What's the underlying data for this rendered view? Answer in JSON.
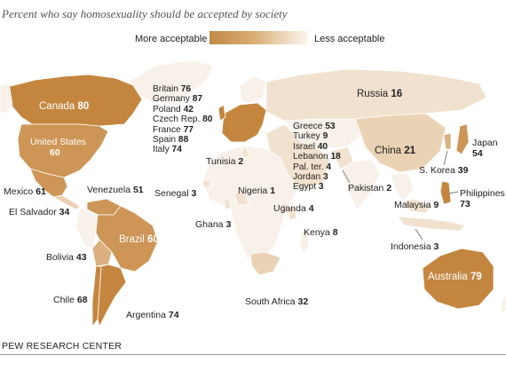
{
  "title": "Percent who say homosexuality should be accepted by society",
  "legend": {
    "more": "More acceptable",
    "less": "Less acceptable",
    "gradient_colors": [
      "#c08a48",
      "#efdcc2",
      "#fbf4ec"
    ]
  },
  "colors": {
    "land": "#f7f1ea",
    "border": "#ffffff",
    "highest": "#c4863f",
    "high": "#cd9556",
    "mid": "#dbb07e",
    "low": "#ead2b4",
    "lowest": "#f1e2cf"
  },
  "countries": {
    "canada": {
      "name": "Canada",
      "value": "80"
    },
    "us": {
      "name": "United States",
      "value": "60"
    },
    "mexico": {
      "name": "Mexico",
      "value": "61"
    },
    "el_salvador": {
      "name": "El Salvador",
      "value": "34"
    },
    "venezuela": {
      "name": "Venezuela",
      "value": "51"
    },
    "brazil": {
      "name": "Brazil",
      "value": "60"
    },
    "bolivia": {
      "name": "Bolivia",
      "value": "43"
    },
    "chile": {
      "name": "Chile",
      "value": "68"
    },
    "argentina": {
      "name": "Argentina",
      "value": "74"
    },
    "senegal": {
      "name": "Senegal",
      "value": "3"
    },
    "ghana": {
      "name": "Ghana",
      "value": "3"
    },
    "nigeria": {
      "name": "Nigeria",
      "value": "1"
    },
    "tunisia": {
      "name": "Tunisia",
      "value": "2"
    },
    "uganda": {
      "name": "Uganda",
      "value": "4"
    },
    "kenya": {
      "name": "Kenya",
      "value": "8"
    },
    "south_africa": {
      "name": "South Africa",
      "value": "32"
    },
    "russia": {
      "name": "Russia",
      "value": "16"
    },
    "china": {
      "name": "China",
      "value": "21"
    },
    "japan": {
      "name": "Japan",
      "value": "54"
    },
    "s_korea": {
      "name": "S. Korea",
      "value": "39"
    },
    "philippines": {
      "name": "Philippines",
      "value": "73"
    },
    "malaysia": {
      "name": "Malaysia",
      "value": "9"
    },
    "indonesia": {
      "name": "Indonesia",
      "value": "3"
    },
    "pakistan": {
      "name": "Pakistan",
      "value": "2"
    },
    "australia": {
      "name": "Australia",
      "value": "79"
    }
  },
  "europe_list": [
    {
      "name": "Britain",
      "value": "76"
    },
    {
      "name": "Germany",
      "value": "87"
    },
    {
      "name": "Poland",
      "value": "42"
    },
    {
      "name": "Czech Rep.",
      "value": "80"
    },
    {
      "name": "France",
      "value": "77"
    },
    {
      "name": "Spain",
      "value": "88"
    },
    {
      "name": "Italy",
      "value": "74"
    }
  ],
  "mideast_list": [
    {
      "name": "Greece",
      "value": "53"
    },
    {
      "name": "Turkey",
      "value": "9"
    },
    {
      "name": "Israel",
      "value": "40"
    },
    {
      "name": "Lebanon",
      "value": "18"
    },
    {
      "name": "Pal. ter.",
      "value": "4"
    },
    {
      "name": "Jordan",
      "value": "3"
    },
    {
      "name": "Egypt",
      "value": "3"
    }
  ],
  "source": "PEW RESEARCH CENTER"
}
